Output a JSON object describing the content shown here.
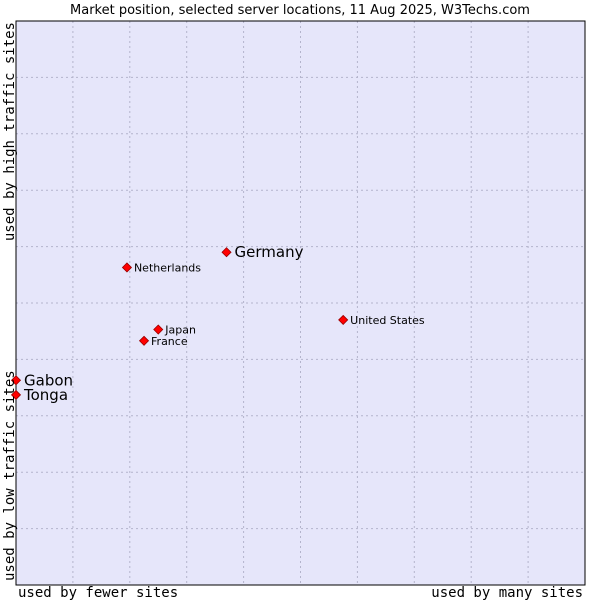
{
  "chart_data": {
    "type": "scatter",
    "title": "Market position, selected server locations, 11 Aug 2025, W3Techs.com",
    "xlabel_low": "used by fewer sites",
    "xlabel_high": "used by many sites",
    "ylabel_low": "used by low traffic sites",
    "ylabel_high": "used by high traffic sites",
    "xlim": [
      0,
      100
    ],
    "ylim": [
      0,
      100
    ],
    "grid": true,
    "grid_divisions_x": 10,
    "grid_divisions_y": 10,
    "points": [
      {
        "name": "Germany",
        "x": 37.0,
        "y": 59.0,
        "emphasis": true
      },
      {
        "name": "Netherlands",
        "x": 19.5,
        "y": 56.3,
        "emphasis": false
      },
      {
        "name": "United States",
        "x": 57.5,
        "y": 47.0,
        "emphasis": false
      },
      {
        "name": "Japan",
        "x": 25.0,
        "y": 45.3,
        "emphasis": false
      },
      {
        "name": "France",
        "x": 22.5,
        "y": 43.3,
        "emphasis": false
      },
      {
        "name": "Gabon",
        "x": 0.0,
        "y": 36.3,
        "emphasis": true
      },
      {
        "name": "Tonga",
        "x": 0.0,
        "y": 33.7,
        "emphasis": true
      }
    ]
  },
  "colors": {
    "plot_background": "#e6e6fa",
    "grid": "#b4b4cc",
    "frame": "#000000",
    "marker": "#ff0000",
    "marker_edge": "#990000",
    "text": "#000000"
  }
}
